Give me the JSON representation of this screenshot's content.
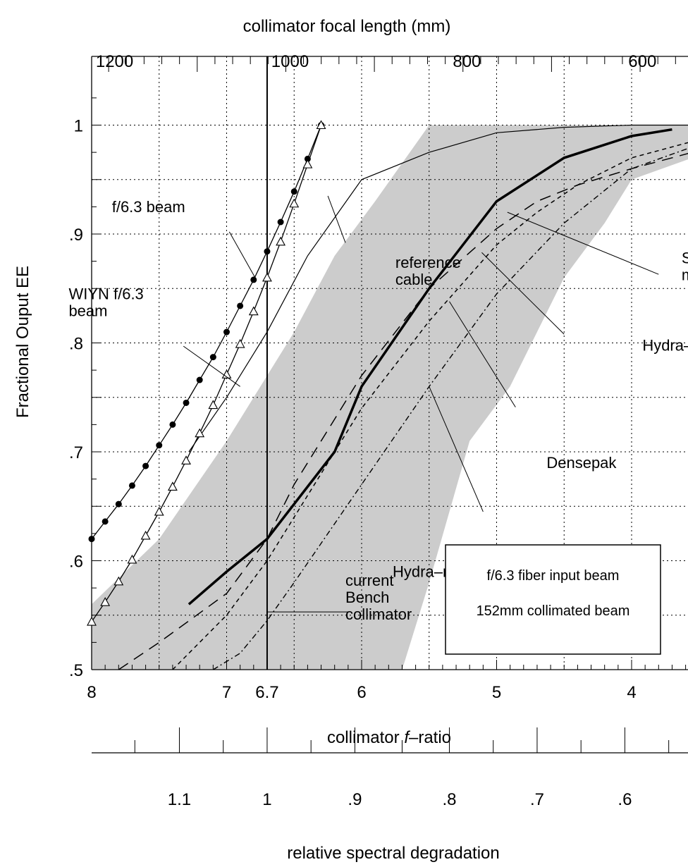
{
  "chart_data": {
    "type": "line",
    "title": "",
    "xlabel_prefix": "collimator ",
    "xlabel_italic": "f",
    "xlabel_suffix": "–ratio",
    "ylabel": "Fractional Ouput EE",
    "top_axis_label": "collimator focal length (mm)",
    "bottom_axis_label": "relative spectral degradation",
    "xlim": [
      8,
      3.55
    ],
    "ylim": [
      0.5,
      1.05
    ],
    "grid": true,
    "x_ticks": [
      {
        "v": 8,
        "label": "8"
      },
      {
        "v": 7,
        "label": "7"
      },
      {
        "v": 6.7,
        "label": "6.7"
      },
      {
        "v": 6,
        "label": "6"
      },
      {
        "v": 5,
        "label": "5"
      },
      {
        "v": 4,
        "label": "4"
      }
    ],
    "y_ticks": [
      {
        "v": 0.5,
        "label": ".5"
      },
      {
        "v": 0.6,
        "label": ".6"
      },
      {
        "v": 0.7,
        "label": ".7"
      },
      {
        "v": 0.8,
        "label": ".8"
      },
      {
        "v": 0.9,
        "label": ".9"
      },
      {
        "v": 1.0,
        "label": "1"
      }
    ],
    "top_ticks": [
      {
        "f": 7.83,
        "label": "1200"
      },
      {
        "f": 6.53,
        "label": "1000"
      },
      {
        "f": 5.22,
        "label": "800"
      },
      {
        "f": 3.92,
        "label": "600"
      }
    ],
    "bottom_ticks": [
      {
        "f": 7.35,
        "label": "1.1"
      },
      {
        "f": 6.7,
        "label": "1"
      },
      {
        "f": 6.05,
        "label": ".9"
      },
      {
        "f": 5.35,
        "label": ".8"
      },
      {
        "f": 4.7,
        "label": ".7"
      },
      {
        "f": 4.05,
        "label": ".6"
      }
    ],
    "shaded_band_upper": [
      [
        8,
        0.56
      ],
      [
        7.5,
        0.62
      ],
      [
        7,
        0.71
      ],
      [
        6.5,
        0.81
      ],
      [
        6.2,
        0.88
      ],
      [
        5.9,
        0.93
      ],
      [
        5.5,
        1.0
      ],
      [
        4,
        1.0
      ],
      [
        3.55,
        1.0
      ]
    ],
    "shaded_band_lower": [
      [
        3.55,
        0.97
      ],
      [
        4,
        0.95
      ],
      [
        4.2,
        0.91
      ],
      [
        4.5,
        0.86
      ],
      [
        4.7,
        0.81
      ],
      [
        4.9,
        0.76
      ],
      [
        5.2,
        0.71
      ],
      [
        5.5,
        0.58
      ],
      [
        5.7,
        0.5
      ],
      [
        8,
        0.5
      ]
    ],
    "reference_lines": [
      {
        "x": 6.7
      }
    ],
    "series": [
      {
        "style": "bold",
        "points": [
          [
            7.28,
            0.56
          ],
          [
            7.0,
            0.59
          ],
          [
            6.7,
            0.62
          ],
          [
            6.2,
            0.7
          ],
          [
            6.0,
            0.76
          ],
          [
            5.5,
            0.85
          ],
          [
            5.0,
            0.93
          ],
          [
            4.5,
            0.97
          ],
          [
            4.0,
            0.99
          ],
          [
            3.7,
            0.996
          ]
        ]
      },
      {
        "style": "thin",
        "points": [
          [
            7.28,
            0.7
          ],
          [
            7.0,
            0.75
          ],
          [
            6.7,
            0.81
          ],
          [
            6.4,
            0.88
          ],
          [
            6.0,
            0.95
          ],
          [
            5.5,
            0.975
          ],
          [
            5.0,
            0.993
          ],
          [
            4.5,
            0.998
          ],
          [
            4.0,
            1.0
          ],
          [
            3.55,
            1.0
          ]
        ]
      },
      {
        "style": "long-dash",
        "points": [
          [
            7.8,
            0.5
          ],
          [
            7.5,
            0.525
          ],
          [
            7.0,
            0.57
          ],
          [
            6.7,
            0.62
          ],
          [
            6.5,
            0.67
          ],
          [
            6.0,
            0.77
          ],
          [
            5.5,
            0.85
          ],
          [
            5.0,
            0.905
          ],
          [
            4.7,
            0.93
          ],
          [
            4.4,
            0.945
          ],
          [
            4.0,
            0.96
          ],
          [
            3.55,
            0.975
          ]
        ]
      },
      {
        "style": "short-dash",
        "points": [
          [
            7.4,
            0.5
          ],
          [
            7.0,
            0.55
          ],
          [
            6.7,
            0.6
          ],
          [
            6.5,
            0.64
          ],
          [
            6.0,
            0.74
          ],
          [
            5.5,
            0.82
          ],
          [
            5.0,
            0.89
          ],
          [
            4.7,
            0.92
          ],
          [
            4.4,
            0.945
          ],
          [
            4.0,
            0.97
          ],
          [
            3.55,
            0.985
          ]
        ]
      },
      {
        "style": "dash-dot",
        "points": [
          [
            7.1,
            0.5
          ],
          [
            6.9,
            0.515
          ],
          [
            6.7,
            0.545
          ],
          [
            6.5,
            0.58
          ],
          [
            6.0,
            0.67
          ],
          [
            5.5,
            0.76
          ],
          [
            5.0,
            0.845
          ],
          [
            4.5,
            0.91
          ],
          [
            4.0,
            0.96
          ],
          [
            3.55,
            0.98
          ]
        ]
      },
      {
        "style": "filled-circle",
        "points": [
          [
            8.0,
            0.62
          ],
          [
            7.9,
            0.636
          ],
          [
            7.8,
            0.652
          ],
          [
            7.7,
            0.669
          ],
          [
            7.6,
            0.687
          ],
          [
            7.5,
            0.706
          ],
          [
            7.4,
            0.725
          ],
          [
            7.3,
            0.745
          ],
          [
            7.2,
            0.766
          ],
          [
            7.1,
            0.787
          ],
          [
            7.0,
            0.81
          ],
          [
            6.9,
            0.834
          ],
          [
            6.8,
            0.858
          ],
          [
            6.7,
            0.884
          ],
          [
            6.6,
            0.911
          ],
          [
            6.5,
            0.939
          ],
          [
            6.4,
            0.969
          ],
          [
            6.3,
            1.0
          ]
        ]
      },
      {
        "style": "open-triangle",
        "points": [
          [
            8.0,
            0.544
          ],
          [
            7.9,
            0.562
          ],
          [
            7.8,
            0.581
          ],
          [
            7.7,
            0.601
          ],
          [
            7.6,
            0.623
          ],
          [
            7.5,
            0.645
          ],
          [
            7.4,
            0.668
          ],
          [
            7.3,
            0.692
          ],
          [
            7.2,
            0.717
          ],
          [
            7.1,
            0.743
          ],
          [
            7.0,
            0.771
          ],
          [
            6.9,
            0.799
          ],
          [
            6.8,
            0.829
          ],
          [
            6.7,
            0.86
          ],
          [
            6.6,
            0.893
          ],
          [
            6.5,
            0.928
          ],
          [
            6.4,
            0.964
          ],
          [
            6.3,
            1.0
          ]
        ]
      }
    ],
    "annotations": [
      {
        "lines": [
          "f/6.3 beam"
        ],
        "pos": [
          7.85,
          0.92
        ],
        "leader": [
          [
            6.98,
            0.902
          ],
          [
            6.78,
            0.858
          ]
        ]
      },
      {
        "lines": [
          "WIYN f/6.3",
          "beam"
        ],
        "pos": [
          8.17,
          0.84
        ],
        "leader": [
          [
            7.32,
            0.797
          ],
          [
            6.9,
            0.76
          ]
        ]
      },
      {
        "lines": [
          "reference",
          "cable"
        ],
        "pos": [
          5.75,
          0.869
        ],
        "leader": [
          [
            6.12,
            0.892
          ],
          [
            6.25,
            0.935
          ]
        ]
      },
      {
        "lines": [
          "SparsePak",
          "mean"
        ],
        "pos": [
          3.63,
          0.873
        ],
        "leader": [
          [
            3.8,
            0.863
          ],
          [
            4.92,
            0.92
          ]
        ]
      },
      {
        "lines": [
          "Hydra–blue"
        ],
        "pos": [
          3.92,
          0.793
        ],
        "leader": [
          [
            4.5,
            0.808
          ],
          [
            5.11,
            0.883
          ]
        ]
      },
      {
        "lines": [
          "Densepak"
        ],
        "pos": [
          4.63,
          0.685
        ],
        "leader": [
          [
            4.86,
            0.741
          ],
          [
            5.35,
            0.838
          ]
        ]
      },
      {
        "lines": [
          "Hydra–red"
        ],
        "pos": [
          5.77,
          0.585
        ],
        "leader": [
          [
            5.1,
            0.645
          ],
          [
            5.5,
            0.76
          ]
        ]
      },
      {
        "lines": [
          "current",
          "Bench",
          "collimator"
        ],
        "pos": [
          6.12,
          0.577
        ],
        "leader": [
          [
            6.7,
            0.553
          ],
          [
            6.1,
            0.553
          ]
        ]
      }
    ],
    "legend_box": {
      "lines": [
        "f/6.3 fiber input beam",
        "152mm collimated beam"
      ],
      "placement": "lower-right"
    }
  }
}
